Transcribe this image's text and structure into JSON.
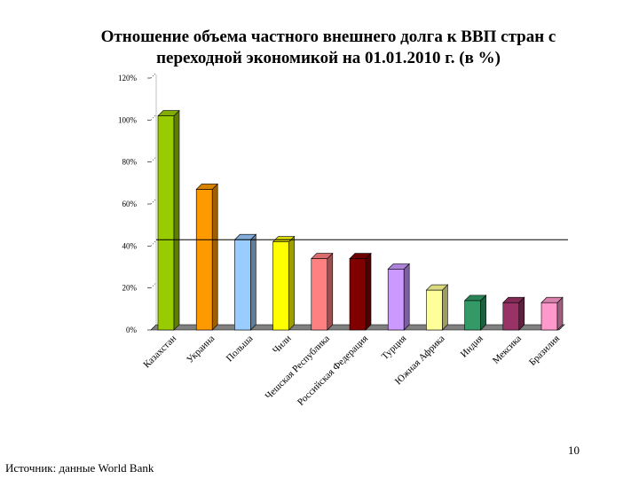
{
  "title_line1": "Отношение объема частного внешнего долга к ВВП стран с",
  "title_line2": "переходной экономикой на 01.01.2010 г. (в %)",
  "page_number": "10",
  "source": "Источник: данные World Bank",
  "chart_data": {
    "type": "bar",
    "categories": [
      "Казахстан",
      "Украина",
      "Польша",
      "Чили",
      "Чешская Республика",
      "Российская Федерация",
      "Турция",
      "Южная Африка",
      "Индия",
      "Мексика",
      "Бразилия"
    ],
    "values": [
      102,
      67,
      43,
      42,
      34,
      34,
      29,
      19,
      14,
      13,
      13
    ],
    "colors": [
      "#99cc00",
      "#ff9900",
      "#99ccff",
      "#ffff00",
      "#ff8080",
      "#800000",
      "#cc99ff",
      "#ffff99",
      "#339966",
      "#993366",
      "#ff99cc"
    ],
    "y_ticks": [
      "0%",
      "20%",
      "40%",
      "60%",
      "80%",
      "100%",
      "120%"
    ],
    "ylim": [
      0,
      120
    ],
    "reference_value": 43,
    "bar_style": "3d",
    "grid": false,
    "legend": "none"
  }
}
